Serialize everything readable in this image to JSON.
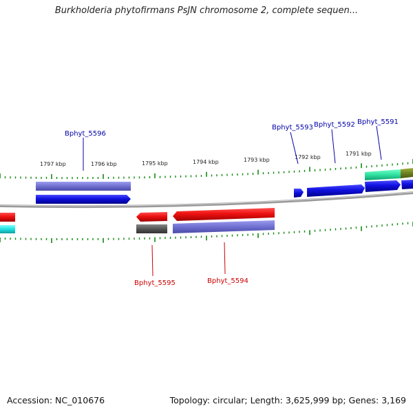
{
  "title": "Burkholderia phytofirmans PsJN chromosome 2, complete sequen...",
  "footer": {
    "accession": "Accession: NC_010676",
    "summary": "Topology: circular; Length: 3,625,999 bp; Genes: 3,169"
  },
  "colors": {
    "forward_gene": "#1010e0",
    "reverse_gene": "#ee1111",
    "cds_purple": "#7070d0",
    "backbone": "#888888",
    "tick": "#118811",
    "label_forward": "#0000aa",
    "label_reverse": "#cc0000",
    "gray_feature": "#555555",
    "teal_feature": "#30e0a0",
    "olive_feature": "#708020",
    "cyan_feature": "#20e0e0"
  },
  "kbp_labels": [
    "1797 kbp",
    "1796 kbp",
    "1795 kbp",
    "1794 kbp",
    "1793 kbp",
    "1792 kbp",
    "1791 kbp"
  ],
  "gene_labels": [
    {
      "name": "Bphyt_5596",
      "strand": "forward"
    },
    {
      "name": "Bphyt_5593",
      "strand": "forward"
    },
    {
      "name": "Bphyt_5592",
      "strand": "forward"
    },
    {
      "name": "Bphyt_5591",
      "strand": "forward"
    },
    {
      "name": "Bphyt_5595",
      "strand": "reverse"
    },
    {
      "name": "Bphyt_5594",
      "strand": "reverse"
    }
  ]
}
